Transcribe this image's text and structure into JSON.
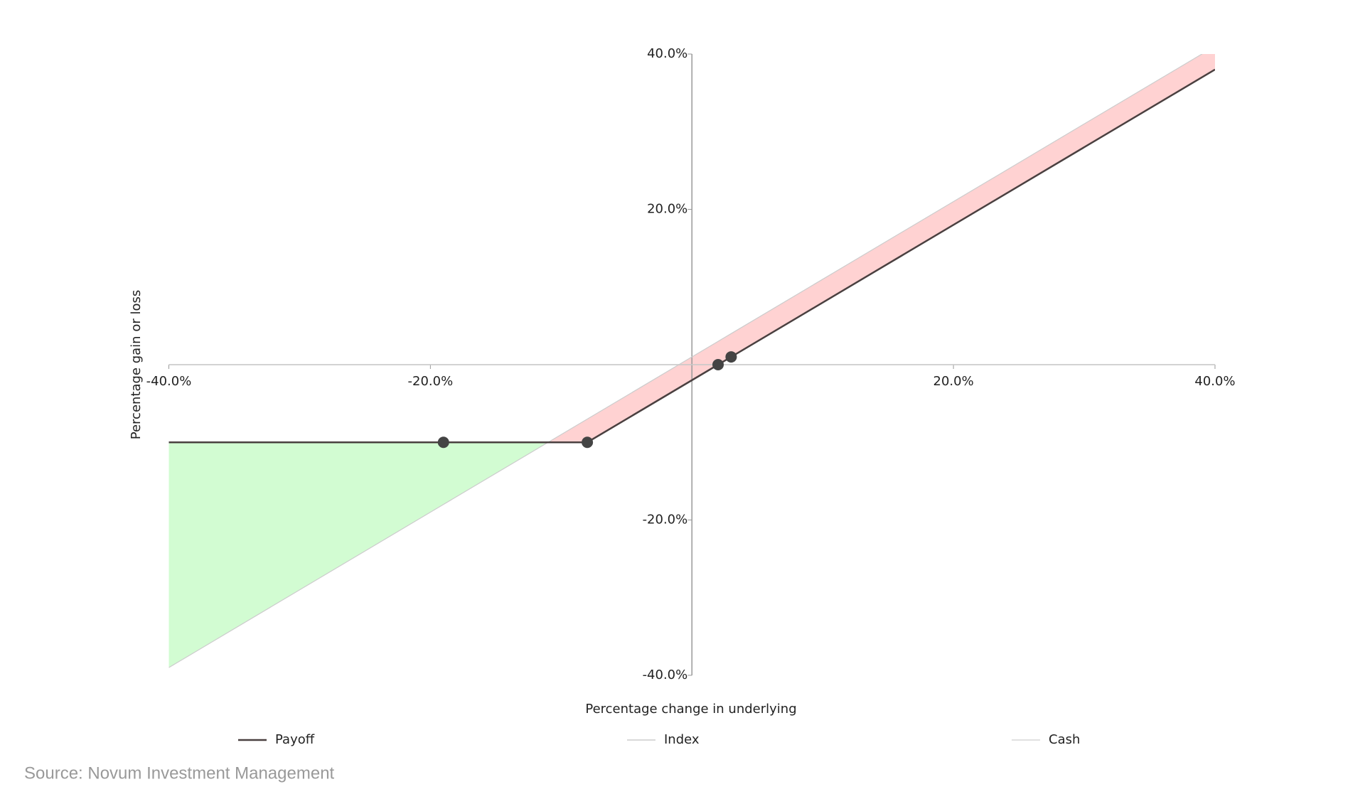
{
  "chart_data": {
    "type": "line",
    "x_label": "Percentage change in underlying",
    "y_label": "Percentage gain or loss",
    "source": "Source: Novum Investment Management",
    "x": [
      -40,
      -19,
      -8,
      2,
      3,
      40
    ],
    "series": [
      {
        "name": "Payoff",
        "color": "#4a4040",
        "values": [
          -10,
          -10,
          -10,
          0,
          1,
          38
        ],
        "markers": [
          false,
          true,
          true,
          true,
          true,
          false
        ]
      },
      {
        "name": "Index",
        "color": "#cccccc",
        "values": [
          -39,
          -18,
          -7,
          3,
          4,
          41
        ]
      },
      {
        "name": "Cash",
        "color": "#d6d6d6",
        "values": [
          0,
          0,
          0,
          0,
          0,
          0
        ]
      }
    ],
    "gain_color": "#d2fcd2",
    "loss_color": "#ffd2d2",
    "xlim": [
      -40,
      40
    ],
    "ylim": [
      -40,
      40
    ],
    "xticks": [
      {
        "value": -40,
        "label": "-40.0%"
      },
      {
        "value": -20,
        "label": "-20.0%"
      },
      {
        "value": 20,
        "label": "20.0%"
      },
      {
        "value": 40,
        "label": "40.0%"
      }
    ],
    "yticks": [
      {
        "value": -40,
        "label": "-40.0%"
      },
      {
        "value": -20,
        "label": "-20.0%"
      },
      {
        "value": 20,
        "label": "20.0%"
      },
      {
        "value": 40,
        "label": "40.0%"
      }
    ],
    "grid": false
  }
}
